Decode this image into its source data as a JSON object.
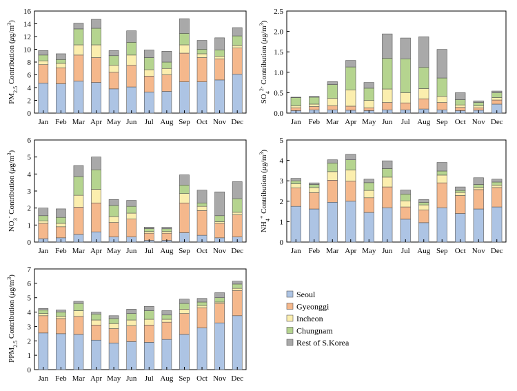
{
  "months": [
    "Jan",
    "Feb",
    "Mar",
    "Apr",
    "May",
    "Jun",
    "Jul",
    "Aug",
    "Sep",
    "Oct",
    "Nov",
    "Dec"
  ],
  "legend": {
    "labels": [
      "Seoul",
      "Gyeonggi",
      "Incheon",
      "Chungnam",
      "Rest of S.Korea"
    ],
    "colors": [
      "#adc4e4",
      "#f5b88c",
      "#fbeeae",
      "#b5d48f",
      "#a9a9a9"
    ]
  },
  "chart_data": [
    {
      "type": "bar",
      "stacked": true,
      "id": "pm25",
      "ylabel": "PM2.5 Contribution (μg/m³)",
      "ylim": [
        0,
        16
      ],
      "yticks": [
        0,
        2,
        4,
        6,
        8,
        10,
        12,
        14,
        16
      ],
      "ytick_labels": [
        "0",
        "2",
        "4",
        "6",
        "8",
        "10",
        "12",
        "14",
        "16"
      ],
      "categories": [
        "Jan",
        "Feb",
        "Mar",
        "Apr",
        "May",
        "Jun",
        "Jul",
        "Aug",
        "Sep",
        "Oct",
        "Nov",
        "Dec"
      ],
      "series": [
        {
          "name": "Seoul",
          "values": [
            4.7,
            4.6,
            5.0,
            4.8,
            3.8,
            4.1,
            3.3,
            3.4,
            4.9,
            4.9,
            5.2,
            6.1
          ]
        },
        {
          "name": "Gyeonggi",
          "values": [
            2.9,
            2.5,
            4.1,
            3.9,
            2.6,
            3.4,
            2.5,
            2.6,
            4.5,
            3.8,
            3.3,
            4.1
          ]
        },
        {
          "name": "Incheon",
          "values": [
            0.6,
            0.7,
            1.6,
            2.0,
            1.1,
            1.6,
            1.0,
            1.0,
            1.3,
            0.6,
            0.4,
            0.4
          ]
        },
        {
          "name": "Chungnam",
          "values": [
            0.9,
            0.6,
            2.5,
            2.6,
            1.5,
            2.0,
            1.9,
            1.0,
            1.8,
            0.7,
            1.0,
            1.5
          ]
        },
        {
          "name": "Rest of S.Korea",
          "values": [
            0.7,
            0.9,
            0.9,
            1.4,
            0.8,
            1.8,
            1.2,
            1.7,
            2.3,
            1.4,
            1.9,
            1.3
          ]
        }
      ]
    },
    {
      "type": "bar",
      "stacked": true,
      "id": "so4",
      "ylabel": "SO4 2- Contribution (μg/m³)",
      "ylim": [
        0,
        2.5
      ],
      "yticks": [
        0,
        0.5,
        1,
        1.5,
        2,
        2.5
      ],
      "ytick_labels": [
        "0.0",
        "0.5",
        "1.0",
        "1.5",
        "2.0",
        "2.5"
      ],
      "categories": [
        "Jan",
        "Feb",
        "Mar",
        "Apr",
        "May",
        "Jun",
        "Jul",
        "Aug",
        "Sep",
        "Oct",
        "Nov",
        "Dec"
      ],
      "series": [
        {
          "name": "Seoul",
          "values": [
            0.06,
            0.08,
            0.08,
            0.07,
            0.06,
            0.08,
            0.08,
            0.1,
            0.08,
            0.06,
            0.07,
            0.22
          ]
        },
        {
          "name": "Gyeonggi",
          "values": [
            0.07,
            0.08,
            0.1,
            0.1,
            0.07,
            0.18,
            0.17,
            0.25,
            0.18,
            0.08,
            0.06,
            0.1
          ]
        },
        {
          "name": "Incheon",
          "values": [
            0.05,
            0.06,
            0.18,
            0.4,
            0.18,
            0.33,
            0.25,
            0.25,
            0.15,
            0.06,
            0.05,
            0.06
          ]
        },
        {
          "name": "Chungnam",
          "values": [
            0.2,
            0.17,
            0.34,
            0.56,
            0.3,
            0.75,
            0.83,
            0.52,
            0.45,
            0.13,
            0.08,
            0.12
          ]
        },
        {
          "name": "Rest of S.Korea",
          "values": [
            0.01,
            0.02,
            0.07,
            0.16,
            0.14,
            0.6,
            0.51,
            0.75,
            0.7,
            0.17,
            0.04,
            0.04
          ]
        }
      ]
    },
    {
      "type": "bar",
      "stacked": true,
      "id": "no3",
      "ylabel": "NO3- Contribution (μg/m³)",
      "ylim": [
        0,
        6
      ],
      "yticks": [
        0,
        1,
        2,
        3,
        4,
        5,
        6
      ],
      "ytick_labels": [
        "0",
        "1",
        "2",
        "3",
        "4",
        "5",
        "6"
      ],
      "categories": [
        "Jan",
        "Feb",
        "Mar",
        "Apr",
        "May",
        "Jun",
        "Jul",
        "Aug",
        "Sep",
        "Oct",
        "Nov",
        "Dec"
      ],
      "series": [
        {
          "name": "Seoul",
          "values": [
            0.2,
            0.25,
            0.45,
            0.6,
            0.3,
            0.3,
            0.1,
            0.1,
            0.55,
            0.4,
            0.25,
            0.3
          ]
        },
        {
          "name": "Gyeonggi",
          "values": [
            0.9,
            0.65,
            1.6,
            1.7,
            0.85,
            1.05,
            0.42,
            0.42,
            1.75,
            1.45,
            0.85,
            1.3
          ]
        },
        {
          "name": "Incheon",
          "values": [
            0.15,
            0.2,
            0.7,
            0.8,
            0.35,
            0.35,
            0.1,
            0.1,
            0.55,
            0.25,
            0.1,
            0.15
          ]
        },
        {
          "name": "Chungnam",
          "values": [
            0.3,
            0.35,
            1.1,
            1.15,
            0.65,
            0.4,
            0.17,
            0.16,
            0.5,
            0.2,
            0.35,
            0.8
          ]
        },
        {
          "name": "Rest of S.Korea",
          "values": [
            0.45,
            0.5,
            0.65,
            0.75,
            0.35,
            0.35,
            0.09,
            0.09,
            0.6,
            0.75,
            1.4,
            1.0
          ]
        }
      ]
    },
    {
      "type": "bar",
      "stacked": true,
      "id": "nh4",
      "ylabel": "NH4+ Contribution (μg/m³)",
      "ylim": [
        0,
        5
      ],
      "yticks": [
        0,
        1,
        2,
        3,
        4,
        5
      ],
      "ytick_labels": [
        "0",
        "1",
        "2",
        "3",
        "4",
        "5"
      ],
      "categories": [
        "Jan",
        "Feb",
        "Mar",
        "Apr",
        "May",
        "Jun",
        "Jul",
        "Aug",
        "Sep",
        "Oct",
        "Nov",
        "Dec"
      ],
      "series": [
        {
          "name": "Seoul",
          "values": [
            1.75,
            1.62,
            1.95,
            2.0,
            1.45,
            1.68,
            1.12,
            0.95,
            1.68,
            1.4,
            1.62,
            1.72
          ]
        },
        {
          "name": "Gyeonggi",
          "values": [
            0.9,
            0.8,
            1.08,
            0.98,
            0.72,
            1.02,
            0.6,
            0.62,
            1.22,
            0.88,
            0.95,
            0.95
          ]
        },
        {
          "name": "Incheon",
          "values": [
            0.2,
            0.25,
            0.42,
            0.55,
            0.36,
            0.48,
            0.3,
            0.25,
            0.38,
            0.15,
            0.1,
            0.12
          ]
        },
        {
          "name": "Chungnam",
          "values": [
            0.15,
            0.15,
            0.42,
            0.5,
            0.38,
            0.42,
            0.33,
            0.12,
            0.2,
            0.1,
            0.15,
            0.15
          ]
        },
        {
          "name": "Rest of S.Korea",
          "values": [
            0.12,
            0.08,
            0.16,
            0.27,
            0.17,
            0.38,
            0.2,
            0.14,
            0.42,
            0.17,
            0.33,
            0.14
          ]
        }
      ]
    },
    {
      "type": "bar",
      "stacked": true,
      "id": "ppm25",
      "ylabel": "PPM2.5 Contribution (μg/m³)",
      "ylim": [
        0,
        7
      ],
      "yticks": [
        0,
        1,
        2,
        3,
        4,
        5,
        6,
        7
      ],
      "ytick_labels": [
        "0",
        "1",
        "2",
        "3",
        "4",
        "5",
        "6",
        "7"
      ],
      "categories": [
        "Jan",
        "Feb",
        "Mar",
        "Apr",
        "May",
        "Jun",
        "Jul",
        "Aug",
        "Sep",
        "Oct",
        "Nov",
        "Dec"
      ],
      "series": [
        {
          "name": "Seoul",
          "values": [
            2.55,
            2.5,
            2.45,
            2.05,
            1.85,
            1.95,
            1.9,
            2.1,
            2.45,
            2.9,
            3.25,
            3.75
          ]
        },
        {
          "name": "Gyeonggi",
          "values": [
            1.2,
            1.05,
            1.25,
            1.05,
            1.0,
            1.1,
            1.2,
            1.2,
            1.45,
            1.4,
            1.35,
            1.75
          ]
        },
        {
          "name": "Incheon",
          "values": [
            0.15,
            0.15,
            0.4,
            0.35,
            0.35,
            0.4,
            0.4,
            0.2,
            0.3,
            0.15,
            0.1,
            0.15
          ]
        },
        {
          "name": "Chungnam",
          "values": [
            0.25,
            0.3,
            0.5,
            0.4,
            0.35,
            0.45,
            0.6,
            0.3,
            0.4,
            0.25,
            0.3,
            0.3
          ]
        },
        {
          "name": "Rest of S.Korea",
          "values": [
            0.1,
            0.15,
            0.15,
            0.15,
            0.2,
            0.3,
            0.3,
            0.3,
            0.3,
            0.25,
            0.35,
            0.2
          ]
        }
      ]
    }
  ]
}
